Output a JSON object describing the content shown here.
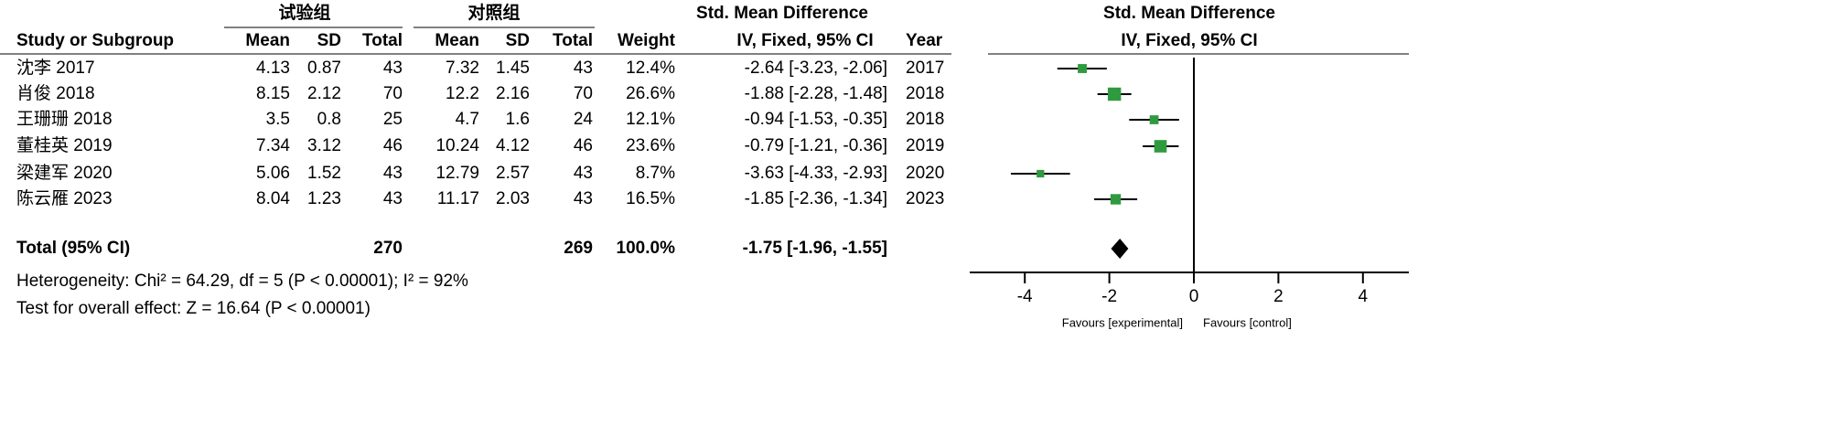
{
  "chart_data": {
    "type": "forest",
    "group_headers": [
      "试验组",
      "对照组"
    ],
    "columns": [
      "Study or Subgroup",
      "Mean",
      "SD",
      "Total",
      "Mean",
      "SD",
      "Total",
      "Weight",
      "IV, Fixed, 95% CI",
      "Year"
    ],
    "effect_header": "Std. Mean Difference",
    "plot_title": "Std. Mean Difference",
    "plot_subtitle": "IV, Fixed, 95% CI",
    "studies": [
      "沈李 2017",
      "肖俊 2018",
      "王珊珊 2018",
      "董桂英 2019",
      "梁建军 2020",
      "陈云雁 2023"
    ],
    "mean1": [
      4.13,
      8.15,
      3.5,
      7.34,
      5.06,
      8.04
    ],
    "sd1": [
      0.87,
      2.12,
      0.8,
      3.12,
      1.52,
      1.23
    ],
    "n1": [
      43,
      70,
      25,
      46,
      43,
      43
    ],
    "mean2": [
      7.32,
      12.2,
      4.7,
      10.24,
      12.79,
      11.17
    ],
    "sd2": [
      1.45,
      2.16,
      1.6,
      4.12,
      2.57,
      2.03
    ],
    "n2": [
      43,
      70,
      24,
      46,
      43,
      43
    ],
    "weights": [
      12.4,
      26.6,
      12.1,
      23.6,
      8.7,
      16.5
    ],
    "weight_labels": [
      "12.4%",
      "26.6%",
      "12.1%",
      "23.6%",
      "8.7%",
      "16.5%"
    ],
    "values": [
      -2.64,
      -1.88,
      -0.94,
      -0.79,
      -3.63,
      -1.85
    ],
    "lower": [
      -3.23,
      -2.28,
      -1.53,
      -1.21,
      -4.33,
      -2.36
    ],
    "upper": [
      -2.06,
      -1.48,
      -0.35,
      -0.36,
      -2.93,
      -1.34
    ],
    "value_labels": [
      "-2.64 [-3.23, -2.06]",
      "-1.88 [-2.28, -1.48]",
      "-0.94 [-1.53, -0.35]",
      "-0.79 [-1.21, -0.36]",
      "-3.63 [-4.33, -2.93]",
      "-1.85 [-2.36, -1.34]"
    ],
    "years": [
      2017,
      2018,
      2018,
      2019,
      2020,
      2023
    ],
    "total": {
      "label": "Total (95% CI)",
      "n1": 270,
      "n2": 269,
      "weight": 100.0,
      "weight_label": "100.0%",
      "value": -1.75,
      "lower": -1.96,
      "upper": -1.55,
      "value_label": "-1.75 [-1.96, -1.55]"
    },
    "heterogeneity": "Heterogeneity: Chi² = 64.29, df = 5 (P < 0.00001); I² = 92%",
    "overall_effect": "Test for overall effect: Z = 16.64 (P < 0.00001)",
    "xlim": [
      -5,
      5
    ],
    "xticks": [
      -4,
      -2,
      0,
      2,
      4
    ],
    "favours": [
      "Favours [experimental]",
      "Favours [control]"
    ],
    "color": "#2f9a3f"
  }
}
